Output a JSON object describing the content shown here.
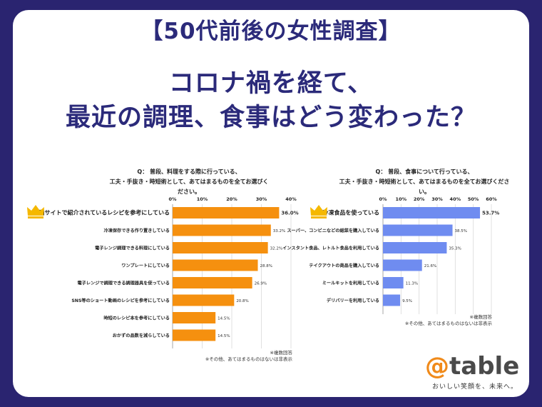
{
  "header": {
    "subtitle": "【50代前後の女性調査】",
    "title_line1": "コロナ禍を経て、",
    "title_line2": "最近の調理、食事はどう変わった？"
  },
  "colors": {
    "left_bar": "#f5900f",
    "right_bar": "#6f8cf0",
    "crown": "#f5b800",
    "navy": "#2b2a7a"
  },
  "chart_data": [
    {
      "type": "bar",
      "orientation": "horizontal",
      "question_line1": "Q： 普段、料理をする際に行っている、",
      "question_line2": "工夫・手抜き・時短術として、あてはまるものを全てお選びください。",
      "categories": [
        "動画サイトで紹介されているレシピを参考にしている",
        "冷凍保存できる作り置きしている",
        "電子レンジ調理できる料理にしている",
        "ワンプレートにしている",
        "電子レンジで調理できる調理器具を使っている",
        "SNS等のショート動画のレシピを参考にしている",
        "時短のレシピ本を参考にしている",
        "おかずの品数を減らしている"
      ],
      "values": [
        36.0,
        33.2,
        32.2,
        28.8,
        26.9,
        20.8,
        14.5,
        14.5
      ],
      "value_labels": [
        "36.0%",
        "33.2%",
        "32.2%",
        "28.8%",
        "26.9%",
        "20.8%",
        "14.5%",
        "14.5%"
      ],
      "xlim": [
        0,
        40
      ],
      "ticks": [
        "0%",
        "10%",
        "20%",
        "30%",
        "40%"
      ],
      "notes": [
        "※複数回答",
        "※その他、あてはまるものはないは非表示"
      ]
    },
    {
      "type": "bar",
      "orientation": "horizontal",
      "question_line1": "Q： 普段、食事について行っている、",
      "question_line2": "工夫・手抜き・時短術として、あてはまるものを全てお選びください。",
      "categories": [
        "冷凍食品を使っている",
        "スーパー、コンビニなどの総菜を購入している",
        "インスタント食品、レトルト食品を利用している",
        "テイクアウトの商品を購入している",
        "ミールキットを利用している",
        "デリバリーを利用している"
      ],
      "values": [
        53.7,
        38.5,
        35.3,
        21.6,
        11.3,
        9.5
      ],
      "value_labels": [
        "53.7%",
        "38.5%",
        "35.3%",
        "21.6%",
        "11.3%",
        "9.5%"
      ],
      "xlim": [
        0,
        60
      ],
      "ticks": [
        "0%",
        "10%",
        "20%",
        "30%",
        "40%",
        "50%",
        "60%"
      ],
      "notes": [
        "※複数回答",
        "※その他、あてはまるものはないは非表示"
      ]
    }
  ],
  "logo": {
    "at": "@",
    "name": "table",
    "tagline": "おいしい笑顔を、未来へ。"
  }
}
